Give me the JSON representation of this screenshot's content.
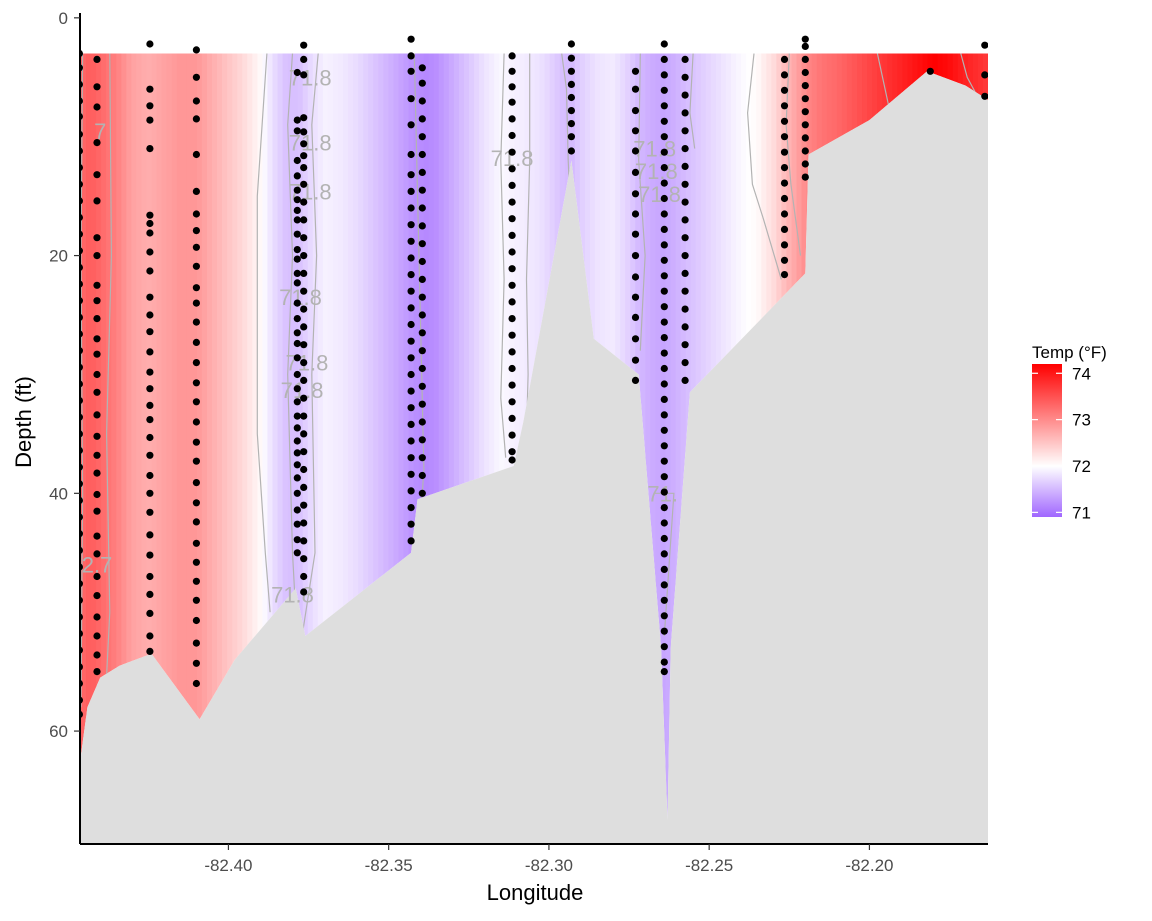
{
  "chart_data": {
    "type": "heatmap",
    "title": "",
    "xlabel": "Longitude",
    "ylabel": "Depth (ft)",
    "xlim": [
      -82.446,
      -82.163
    ],
    "ylim": [
      69.5,
      -1.5
    ],
    "y_reversed": true,
    "x_ticks": [
      -82.4,
      -82.35,
      -82.3,
      -82.25,
      -82.2
    ],
    "x_tick_labels": [
      "-82.40",
      "-82.35",
      "-82.30",
      "-82.25",
      "-82.20"
    ],
    "y_ticks": [
      0,
      20,
      40,
      60
    ],
    "y_tick_labels": [
      "0",
      "20",
      "40",
      "60"
    ],
    "legend": {
      "title": "Temp (°F)",
      "position": "right",
      "range": [
        70.9,
        74.2
      ],
      "ticks": [
        71,
        72,
        73,
        74
      ],
      "tick_labels": [
        "71",
        "72",
        "73",
        "74"
      ],
      "colors": {
        "low": "#a066ff",
        "mid": "#ffffff",
        "high": "#ff0000"
      },
      "midpoint": 72
    },
    "colors": {
      "seabed": "#dedede",
      "points": "#000000",
      "contours": "#b3b3b3"
    },
    "temperature_profile": {
      "lon": [
        -82.446,
        -82.443,
        -82.44,
        -82.435,
        -82.43,
        -82.425,
        -82.42,
        -82.415,
        -82.41,
        -82.405,
        -82.4,
        -82.395,
        -82.39,
        -82.386,
        -82.382,
        -82.378,
        -82.374,
        -82.37,
        -82.365,
        -82.36,
        -82.355,
        -82.35,
        -82.345,
        -82.342,
        -82.338,
        -82.335,
        -82.33,
        -82.325,
        -82.32,
        -82.315,
        -82.311,
        -82.307,
        -82.303,
        -82.3,
        -82.296,
        -82.293,
        -82.29,
        -82.285,
        -82.28,
        -82.276,
        -82.272,
        -82.268,
        -82.264,
        -82.26,
        -82.256,
        -82.252,
        -82.248,
        -82.244,
        -82.24,
        -82.235,
        -82.23,
        -82.226,
        -82.222,
        -82.219,
        -82.215,
        -82.21,
        -82.205,
        -82.2,
        -82.195,
        -82.19,
        -82.185,
        -82.18,
        -82.175,
        -82.17,
        -82.166,
        -82.163
      ],
      "temp": [
        73.3,
        73.4,
        73.3,
        73.1,
        72.8,
        72.7,
        72.8,
        72.9,
        72.9,
        72.7,
        72.5,
        72.3,
        72.05,
        71.75,
        71.55,
        71.55,
        71.75,
        71.9,
        71.85,
        71.75,
        71.6,
        71.45,
        71.3,
        71.2,
        71.15,
        71.2,
        71.4,
        71.6,
        71.8,
        71.95,
        71.9,
        71.85,
        71.8,
        71.7,
        71.55,
        71.5,
        71.65,
        71.8,
        71.85,
        71.7,
        71.5,
        71.4,
        71.35,
        71.45,
        71.55,
        71.65,
        71.75,
        71.85,
        71.95,
        72.05,
        72.3,
        72.6,
        72.85,
        73.05,
        73.2,
        73.3,
        73.45,
        73.6,
        73.75,
        73.9,
        74.05,
        74.2,
        74.1,
        73.9,
        73.8,
        73.7
      ]
    },
    "seabed_profile": {
      "lon": [
        -82.446,
        -82.444,
        -82.44,
        -82.434,
        -82.424,
        -82.409,
        -82.398,
        -82.379,
        -82.376,
        -82.343,
        -82.341,
        -82.311,
        -82.308,
        -82.293,
        -82.286,
        -82.272,
        -82.265,
        -82.263,
        -82.262,
        -82.256,
        -82.22,
        -82.219,
        -82.2,
        -82.182,
        -82.17,
        -82.163
      ],
      "depth": [
        62,
        58,
        55.5,
        54.5,
        53.5,
        59,
        54,
        48,
        52,
        45,
        40.5,
        37.7,
        34,
        12,
        27,
        30,
        53,
        67.5,
        53,
        31.5,
        21.5,
        11.5,
        8.6,
        4.5,
        5.7,
        6.9
      ]
    },
    "stations": [
      {
        "lon": -82.4465,
        "depths": [
          3.0,
          4.2,
          5.6,
          7.0,
          8.3,
          9.8,
          11.2,
          12.6,
          14.0,
          15.4,
          16.8,
          18.2,
          19.6,
          21.0,
          22.4,
          23.8,
          25.2,
          26.6,
          28.0,
          29.4,
          30.8,
          32.2,
          33.6,
          35.0,
          36.4,
          37.8,
          39.2,
          40.6,
          42.0,
          43.4,
          44.8,
          46.2,
          47.6,
          49.0,
          50.4,
          51.8,
          53.2,
          54.6,
          56.0,
          57.4,
          58.6
        ]
      },
      {
        "lon": -82.441,
        "depths": [
          3.5,
          5.8,
          7.5,
          10.5,
          13.2,
          15.4,
          18.5,
          20.0,
          22.5,
          23.8,
          25.3,
          27.0,
          28.3,
          30.0,
          31.5,
          33.4,
          35.2,
          36.8,
          38.3,
          40.1,
          41.5,
          43.6,
          45.1,
          47.0,
          48.6,
          50.4,
          52.0,
          53.6,
          55.0
        ]
      },
      {
        "lon": -82.4245,
        "depths": [
          2.2,
          6.0,
          7.4,
          8.6,
          11.0,
          16.6,
          17.3,
          18.1,
          19.7,
          21.3,
          23.5,
          25.0,
          26.4,
          28.1,
          29.8,
          31.2,
          32.6,
          33.8,
          35.3,
          36.8,
          38.5,
          40.0,
          41.6,
          43.5,
          45.2,
          47.0,
          48.5,
          50.1,
          52.0,
          53.3
        ]
      },
      {
        "lon": -82.41,
        "depths": [
          2.7,
          5.0,
          7.0,
          8.5,
          11.5,
          14.6,
          16.5,
          17.9,
          19.3,
          20.9,
          22.7,
          24.0,
          25.6,
          27.3,
          29.0,
          30.7,
          32.3,
          34.0,
          35.7,
          37.3,
          39.1,
          40.8,
          42.4,
          44.2,
          45.8,
          47.4,
          49.0,
          50.7,
          52.6,
          54.3,
          56.0
        ]
      },
      {
        "lon": -82.3785,
        "depths": [
          4.6,
          8.6,
          9.5,
          12.0,
          13.3,
          14.5,
          15.3,
          16.2,
          17.0,
          18.2,
          19.5,
          20.3,
          21.5,
          22.3,
          24.0,
          25.3,
          26.5,
          27.4,
          28.6,
          30.0,
          31.2,
          32.3,
          33.5,
          34.5,
          35.6,
          36.6,
          37.6,
          38.7,
          40.0,
          41.4,
          42.6,
          43.9,
          45.0
        ]
      },
      {
        "lon": -82.3765,
        "depths": [
          2.3,
          3.5,
          4.8,
          8.4,
          9.6,
          10.6,
          11.6,
          12.6,
          14.0,
          15.5,
          17.0,
          18.5,
          20.0,
          21.5,
          23.0,
          24.5,
          26.0,
          27.5,
          29.0,
          30.5,
          32.0,
          33.5,
          35.0,
          36.5,
          38.0,
          39.5,
          41.0,
          42.5,
          44.0,
          45.5,
          47.0,
          48.3
        ]
      },
      {
        "lon": -82.343,
        "depths": [
          1.8,
          3.2,
          4.5,
          6.8,
          9.0,
          11.5,
          13.2,
          14.6,
          16.0,
          17.4,
          18.8,
          20.2,
          21.6,
          23.0,
          24.4,
          25.8,
          27.2,
          28.6,
          30.0,
          31.4,
          32.8,
          34.2,
          35.6,
          37.0,
          38.4,
          39.8,
          41.2,
          42.6,
          44.0
        ]
      },
      {
        "lon": -82.3395,
        "depths": [
          4.2,
          5.5,
          7.0,
          8.5,
          10.0,
          11.5,
          13.0,
          14.5,
          16.0,
          17.5,
          19.0,
          20.5,
          22.0,
          23.5,
          25.0,
          26.5,
          28.0,
          29.5,
          31.0,
          32.5,
          34.0,
          35.5,
          37.0,
          38.5,
          40.0
        ]
      },
      {
        "lon": -82.3115,
        "depths": [
          3.2,
          4.5,
          5.8,
          7.1,
          8.5,
          9.9,
          11.3,
          12.7,
          14.1,
          15.5,
          16.9,
          18.3,
          19.7,
          21.1,
          22.5,
          23.9,
          25.3,
          26.7,
          28.1,
          29.5,
          30.9,
          32.3,
          33.7,
          35.1,
          36.5,
          37.2
        ]
      },
      {
        "lon": -82.293,
        "depths": [
          2.2,
          3.4,
          4.5,
          5.6,
          6.7,
          7.8,
          8.9,
          10.0,
          11.2
        ]
      },
      {
        "lon": -82.273,
        "depths": [
          4.5,
          6.0,
          7.8,
          9.5,
          11.2,
          13.0,
          14.8,
          16.5,
          18.2,
          20.0,
          21.8,
          23.5,
          25.2,
          27.0,
          28.8,
          30.5
        ]
      },
      {
        "lon": -82.264,
        "depths": [
          2.2,
          3.5,
          4.8,
          6.1,
          7.4,
          8.7,
          10.0,
          11.3,
          12.6,
          13.9,
          15.2,
          16.5,
          17.8,
          19.1,
          20.4,
          21.7,
          23.0,
          24.3,
          25.6,
          26.9,
          28.2,
          29.5,
          30.8,
          32.1,
          33.4,
          34.7,
          36.0,
          37.3,
          38.6,
          39.9,
          41.2,
          42.5,
          43.8,
          45.1,
          46.4,
          47.7,
          49.0,
          50.3,
          51.6,
          52.9,
          54.2,
          55.0
        ]
      },
      {
        "lon": -82.2575,
        "depths": [
          3.5,
          5.0,
          6.5,
          8.0,
          9.5,
          11.0,
          12.5,
          14.0,
          15.5,
          17.0,
          18.5,
          20.0,
          21.5,
          23.0,
          24.5,
          26.0,
          27.5,
          29.0,
          30.5
        ]
      },
      {
        "lon": -82.2265,
        "depths": [
          3.5,
          4.8,
          6.1,
          7.4,
          8.7,
          10.0,
          11.3,
          12.6,
          13.9,
          15.2,
          16.5,
          17.8,
          19.1,
          20.4,
          21.6
        ]
      },
      {
        "lon": -82.22,
        "depths": [
          1.8,
          2.4,
          3.5,
          4.6,
          5.7,
          6.8,
          7.9,
          9.0,
          10.1,
          11.2,
          12.3,
          13.4
        ]
      },
      {
        "lon": -82.181,
        "depths": [
          4.5
        ]
      },
      {
        "lon": -82.164,
        "depths": [
          2.3,
          4.8,
          6.6
        ]
      }
    ],
    "contours": [
      {
        "label": "72.7",
        "path": [
          [
            -82.4455,
            3
          ],
          [
            -82.446,
            20
          ],
          [
            -82.4455,
            40
          ],
          [
            -82.446,
            58
          ]
        ]
      },
      {
        "label": "72.7",
        "path": [
          [
            -82.437,
            3
          ],
          [
            -82.4365,
            20
          ],
          [
            -82.438,
            35
          ],
          [
            -82.437,
            50
          ],
          [
            -82.4385,
            58
          ]
        ]
      },
      {
        "label": "71.8",
        "path": [
          [
            -82.388,
            3
          ],
          [
            -82.391,
            15
          ],
          [
            -82.391,
            35
          ],
          [
            -82.3885,
            45
          ],
          [
            -82.387,
            50
          ]
        ]
      },
      {
        "label": "71.8",
        "path": [
          [
            -82.38,
            3
          ],
          [
            -82.3815,
            9
          ],
          [
            -82.38,
            20
          ],
          [
            -82.3815,
            30
          ],
          [
            -82.38,
            45
          ],
          [
            -82.379,
            50
          ]
        ]
      },
      {
        "label": "71.8",
        "path": [
          [
            -82.372,
            3
          ],
          [
            -82.374,
            9
          ],
          [
            -82.3725,
            20
          ],
          [
            -82.374,
            30
          ],
          [
            -82.373,
            45
          ],
          [
            -82.377,
            52
          ]
        ]
      },
      {
        "label": "71.8",
        "path": [
          [
            -82.342,
            3
          ],
          [
            -82.339,
            38
          ],
          [
            -82.3405,
            44
          ]
        ]
      },
      {
        "label": "71.8",
        "path": [
          [
            -82.314,
            3
          ],
          [
            -82.315,
            12
          ],
          [
            -82.314,
            22
          ],
          [
            -82.315,
            32
          ],
          [
            -82.3135,
            37
          ]
        ]
      },
      {
        "label": "71.8",
        "path": [
          [
            -82.306,
            3
          ],
          [
            -82.306,
            12
          ],
          [
            -82.307,
            22
          ],
          [
            -82.3065,
            30
          ],
          [
            -82.307,
            35
          ]
        ]
      },
      {
        "label": "71.8",
        "path": [
          [
            -82.296,
            3
          ],
          [
            -82.2945,
            6
          ],
          [
            -82.294,
            12
          ],
          [
            -82.2935,
            15
          ]
        ]
      },
      {
        "label": "71.8",
        "path": [
          [
            -82.2715,
            3
          ],
          [
            -82.272,
            12
          ],
          [
            -82.27,
            20
          ],
          [
            -82.2715,
            28
          ]
        ]
      },
      {
        "label": "71.8",
        "path": [
          [
            -82.255,
            3
          ],
          [
            -82.256,
            8
          ],
          [
            -82.2545,
            11
          ]
        ]
      },
      {
        "label": "71.8",
        "path": [
          [
            -82.267,
            40
          ],
          [
            -82.261,
            40
          ],
          [
            -82.264,
            52
          ]
        ]
      },
      {
        "label": "",
        "path": [
          [
            -82.236,
            3
          ],
          [
            -82.238,
            8
          ],
          [
            -82.2365,
            14
          ],
          [
            -82.233,
            17
          ],
          [
            -82.2275,
            22
          ]
        ]
      },
      {
        "label": "",
        "path": [
          [
            -82.225,
            3
          ],
          [
            -82.226,
            9
          ],
          [
            -82.2245,
            14
          ],
          [
            -82.2215,
            20
          ]
        ]
      },
      {
        "label": "",
        "path": [
          [
            -82.1975,
            3
          ],
          [
            -82.1935,
            8
          ],
          [
            -82.1875,
            9
          ],
          [
            -82.182,
            6
          ],
          [
            -82.177,
            5
          ]
        ]
      },
      {
        "label": "",
        "path": [
          [
            -82.1715,
            3
          ],
          [
            -82.1695,
            5
          ],
          [
            -82.1665,
            6.5
          ]
        ]
      }
    ],
    "contour_labels": [
      {
        "text": "71.8",
        "lon": -82.3745,
        "depth": 5.0
      },
      {
        "text": "71.8",
        "lon": -82.3745,
        "depth": 10.5
      },
      {
        "text": "71.8",
        "lon": -82.3745,
        "depth": 14.6
      },
      {
        "text": "71.8",
        "lon": -82.3775,
        "depth": 23.5
      },
      {
        "text": "71.8",
        "lon": -82.3755,
        "depth": 29.0
      },
      {
        "text": "71.8",
        "lon": -82.377,
        "depth": 31.3
      },
      {
        "text": "71.8",
        "lon": -82.38,
        "depth": 48.5
      },
      {
        "text": "71.8",
        "lon": -82.3115,
        "depth": 11.8
      },
      {
        "text": "71.8",
        "lon": -82.267,
        "depth": 11.0
      },
      {
        "text": "71.8",
        "lon": -82.2665,
        "depth": 12.9
      },
      {
        "text": "71.8",
        "lon": -82.2655,
        "depth": 14.8
      },
      {
        "text": "71.",
        "lon": -82.2645,
        "depth": 40.0
      },
      {
        "text": "7",
        "lon": -82.44,
        "depth": 9.5
      },
      {
        "text": "2.7",
        "lon": -82.441,
        "depth": 46.0
      }
    ]
  }
}
